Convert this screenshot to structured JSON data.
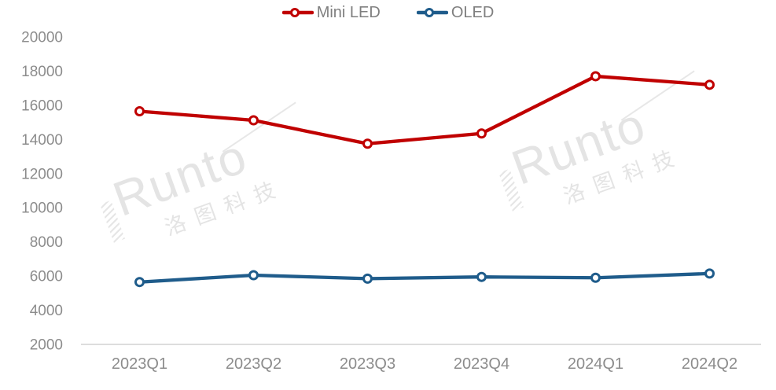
{
  "chart_data": {
    "type": "line",
    "title": "",
    "xlabel": "",
    "ylabel": "",
    "categories": [
      "2023Q1",
      "2023Q2",
      "2023Q3",
      "2023Q4",
      "2024Q1",
      "2024Q2"
    ],
    "series": [
      {
        "name": "Mini LED",
        "color": "#C00000",
        "values": [
          15650,
          15120,
          13750,
          14350,
          17700,
          17200
        ]
      },
      {
        "name": "OLED",
        "color": "#1F5C8B",
        "values": [
          5650,
          6050,
          5850,
          5950,
          5900,
          6150
        ]
      }
    ],
    "ylim": [
      2000,
      20000
    ],
    "y_ticks": [
      2000,
      4000,
      6000,
      8000,
      10000,
      12000,
      14000,
      16000,
      18000,
      20000
    ],
    "grid": false,
    "legend_position": "top-center",
    "marker": "open-circle"
  },
  "legend": {
    "items": [
      {
        "label": "Mini LED",
        "color": "#C00000"
      },
      {
        "label": "OLED",
        "color": "#1F5C8B"
      }
    ]
  },
  "watermark": {
    "brand": "Runto",
    "company_cjk": "洛图科技"
  },
  "styles": {
    "tick_label_color": "#8C8C8C",
    "legend_label_color": "#7F7F7F",
    "axis_line_color": "#D2D2D2",
    "watermark_color": "#E4E4E4",
    "background": "#FFFFFF"
  }
}
